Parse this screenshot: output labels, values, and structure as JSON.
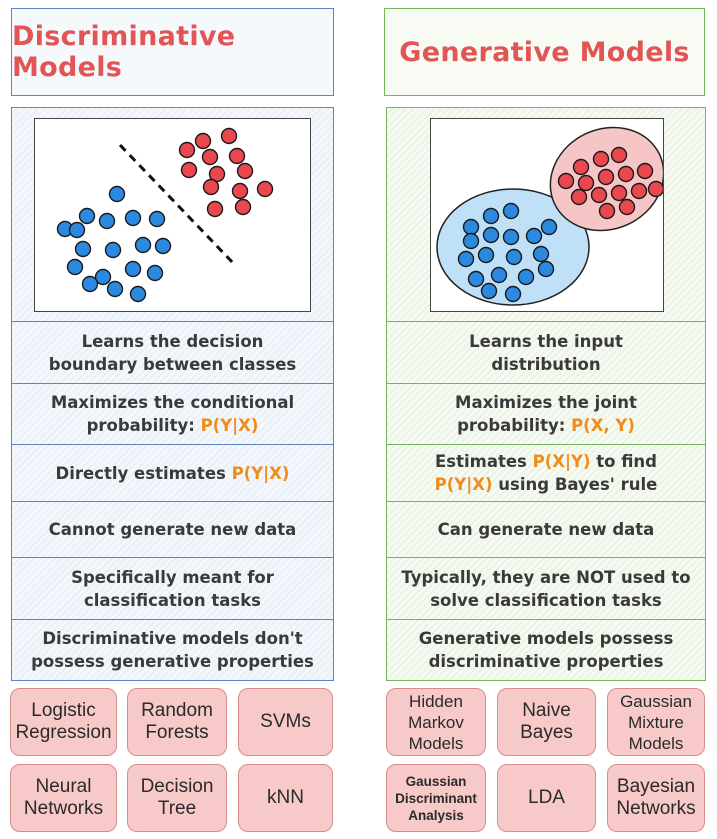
{
  "left": {
    "title": "Discriminative Models",
    "rows": [
      {
        "line1": "Learns the decision",
        "line2": "boundary between classes"
      },
      {
        "line1": "Maximizes the conditional",
        "line2_pre": "probability: ",
        "line2_hl": "P(Y|X)"
      },
      {
        "pre": "Directly estimates ",
        "hl": "P(Y|X)"
      },
      {
        "text": "Cannot generate new data"
      },
      {
        "line1": "Specifically meant for",
        "line2": "classification tasks"
      },
      {
        "line1": "Discriminative models don't",
        "line2": "possess generative properties"
      }
    ],
    "models": [
      [
        "Logistic",
        "Regression"
      ],
      [
        "Random",
        "Forests"
      ],
      [
        "SVMs"
      ],
      [
        "Neural",
        "Networks"
      ],
      [
        "Decision",
        "Tree"
      ],
      [
        "kNN"
      ]
    ]
  },
  "right": {
    "title": "Generative Models",
    "rows": [
      {
        "line1": "Learns the input",
        "line2": "distribution"
      },
      {
        "line1": "Maximizes the joint",
        "line2_pre": "probability: ",
        "line2_hl": "P(X, Y)"
      },
      {
        "l1_pre": "Estimates ",
        "l1_hl": "P(X|Y)",
        "l1_post": " to find",
        "l2_hl": "P(Y|X)",
        "l2_post": " using Bayes' rule"
      },
      {
        "text": "Can generate new data"
      },
      {
        "line1": "Typically, they are NOT used to",
        "line2": "solve classification tasks"
      },
      {
        "line1": "Generative models possess",
        "line2": "discriminative properties"
      }
    ],
    "models": [
      [
        "Hidden",
        "Markov",
        "Models"
      ],
      [
        "Naive",
        "Bayes"
      ],
      [
        "Gaussian",
        "Mixture",
        "Models"
      ],
      [
        "Gaussian",
        "Discriminant",
        "Analysis"
      ],
      [
        "LDA"
      ],
      [
        "Bayesian",
        "Networks"
      ]
    ]
  },
  "colors": {
    "title": "#e15555",
    "highlight": "#f08c1c",
    "blue_point": "#2b8ae0",
    "red_point": "#e8484e",
    "left_border": "#5b85c7",
    "right_border": "#72b85a",
    "chip_fill": "#f8c9c9"
  }
}
